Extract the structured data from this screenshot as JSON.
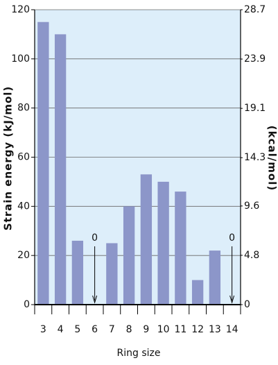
{
  "chart_data": {
    "type": "bar",
    "x_label": "Ring size",
    "y_label": "Strain energy (kJ/mol)",
    "y2_label": "(kcal/mol)",
    "categories": [
      "3",
      "4",
      "5",
      "6",
      "7",
      "8",
      "9",
      "10",
      "11",
      "12",
      "13",
      "14"
    ],
    "values": [
      115,
      110,
      26,
      0,
      25,
      40,
      53,
      50,
      46,
      10,
      22,
      0
    ],
    "color": "#8c96c9",
    "background": "#ddeefa",
    "ylim": [
      0,
      120
    ],
    "yticks": [
      0,
      20,
      40,
      60,
      80,
      100,
      120
    ],
    "y2lim": [
      0,
      28.7
    ],
    "y2ticks": [
      0,
      4.8,
      9.6,
      14.3,
      19.1,
      23.9,
      28.7
    ],
    "grid": true,
    "annotations": [
      {
        "x": "6",
        "text": "0"
      },
      {
        "x": "14",
        "text": "0"
      }
    ]
  }
}
